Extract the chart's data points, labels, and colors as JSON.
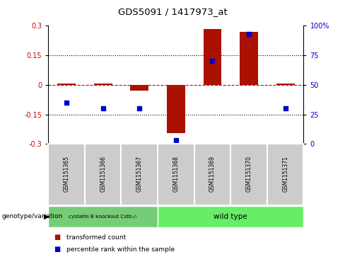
{
  "title": "GDS5091 / 1417973_at",
  "samples": [
    "GSM1151365",
    "GSM1151366",
    "GSM1151367",
    "GSM1151368",
    "GSM1151369",
    "GSM1151370",
    "GSM1151371"
  ],
  "transformed_count": [
    0.008,
    0.005,
    -0.03,
    -0.245,
    0.283,
    0.27,
    0.005
  ],
  "percentile_rank": [
    35,
    30,
    30,
    3,
    70,
    93,
    30
  ],
  "ylim_left": [
    -0.3,
    0.3
  ],
  "ylim_right": [
    0,
    100
  ],
  "yticks_left": [
    -0.3,
    -0.15,
    0,
    0.15,
    0.3
  ],
  "ytick_labels_left": [
    "-0.3",
    "-0.15",
    "0",
    "0.15",
    "0.3"
  ],
  "yticks_right": [
    0,
    25,
    50,
    75,
    100
  ],
  "ytick_labels_right": [
    "0",
    "25",
    "50",
    "75",
    "100%"
  ],
  "bar_color": "#aa1100",
  "dot_color": "#0000cc",
  "zero_line_color": "#cc0000",
  "grid_color": "#000000",
  "background_plot": "#ffffff",
  "sample_box_color": "#cccccc",
  "group1_color": "#77cc77",
  "group2_color": "#66ee66",
  "group1_label": "cystatin B knockout Cstb-/-",
  "group2_label": "wild type",
  "group1_samples": [
    0,
    1,
    2
  ],
  "group2_samples": [
    3,
    4,
    5,
    6
  ],
  "legend_tc": "transformed count",
  "legend_pr": "percentile rank within the sample",
  "genotype_label": "genotype/variation",
  "bar_width": 0.5
}
